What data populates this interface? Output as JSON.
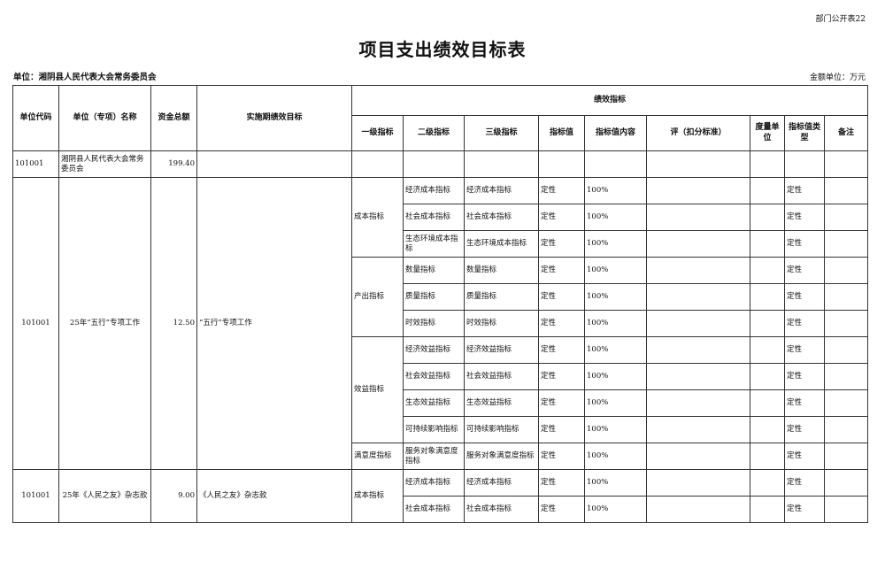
{
  "header": {
    "form_no": "部门公开表22",
    "title": "项目支出绩效目标表",
    "unit": "单位：湘阴县人民代表大会常务委员会",
    "amount_unit": "金额单位：万元"
  },
  "columns": {
    "code": "单位代码",
    "name": "单位（专项）名称",
    "total": "资金总额",
    "goal": "实施期绩效目标",
    "perf": "绩效指标",
    "level1": "一级指标",
    "level2": "二级指标",
    "level3": "三级指标",
    "value": "指标值",
    "content": "指标值内容",
    "criteria": "评（扣分标准）",
    "measure_unit": "度量单位",
    "value_type": "指标值类型",
    "note": "备注"
  },
  "summary_row": {
    "code": "101001",
    "name": "湘阴县人民代表大会常务委员会",
    "total": "199.40"
  },
  "projects": [
    {
      "code": "101001",
      "name": "25年“五行”专项工作",
      "total": "12.50",
      "goal": "“五行”专项工作",
      "groups": [
        {
          "level1": "成本指标",
          "items": [
            {
              "level2": "经济成本指标",
              "level3": "经济成本指标",
              "value": "定性",
              "content": "100%",
              "criteria": "",
              "unit": "",
              "type": "定性",
              "note": ""
            },
            {
              "level2": "社会成本指标",
              "level3": "社会成本指标",
              "value": "定性",
              "content": "100%",
              "criteria": "",
              "unit": "",
              "type": "定性",
              "note": ""
            },
            {
              "level2": "生态环境成本指标",
              "level3": "生态环境成本指标",
              "value": "定性",
              "content": "100%",
              "criteria": "",
              "unit": "",
              "type": "定性",
              "note": ""
            }
          ]
        },
        {
          "level1": "产出指标",
          "items": [
            {
              "level2": "数量指标",
              "level3": "数量指标",
              "value": "定性",
              "content": "100%",
              "criteria": "",
              "unit": "",
              "type": "定性",
              "note": ""
            },
            {
              "level2": "质量指标",
              "level3": "质量指标",
              "value": "定性",
              "content": "100%",
              "criteria": "",
              "unit": "",
              "type": "定性",
              "note": ""
            },
            {
              "level2": "时效指标",
              "level3": "时效指标",
              "value": "定性",
              "content": "100%",
              "criteria": "",
              "unit": "",
              "type": "定性",
              "note": ""
            }
          ]
        },
        {
          "level1": "效益指标",
          "items": [
            {
              "level2": "经济效益指标",
              "level3": "经济效益指标",
              "value": "定性",
              "content": "100%",
              "criteria": "",
              "unit": "",
              "type": "定性",
              "note": ""
            },
            {
              "level2": "社会效益指标",
              "level3": "社会效益指标",
              "value": "定性",
              "content": "100%",
              "criteria": "",
              "unit": "",
              "type": "定性",
              "note": ""
            },
            {
              "level2": "生态效益指标",
              "level3": "生态效益指标",
              "value": "定性",
              "content": "100%",
              "criteria": "",
              "unit": "",
              "type": "定性",
              "note": ""
            },
            {
              "level2": "可持续影响指标",
              "level3": "可持续影响指标",
              "value": "定性",
              "content": "100%",
              "criteria": "",
              "unit": "",
              "type": "定性",
              "note": ""
            }
          ]
        },
        {
          "level1": "满意度指标",
          "items": [
            {
              "level2": "服务对象满意度指标",
              "level3": "服务对象满意度指标",
              "value": "定性",
              "content": "100%",
              "criteria": "",
              "unit": "",
              "type": "定性",
              "note": ""
            }
          ]
        }
      ]
    },
    {
      "code": "101001",
      "name": "25年《人民之友》杂志款",
      "total": "9.00",
      "goal": "《人民之友》杂志款",
      "groups": [
        {
          "level1": "成本指标",
          "items": [
            {
              "level2": "经济成本指标",
              "level3": "经济成本指标",
              "value": "定性",
              "content": "100%",
              "criteria": "",
              "unit": "",
              "type": "定性",
              "note": ""
            },
            {
              "level2": "社会成本指标",
              "level3": "社会成本指标",
              "value": "定性",
              "content": "100%",
              "criteria": "",
              "unit": "",
              "type": "定性",
              "note": ""
            }
          ]
        }
      ]
    }
  ]
}
